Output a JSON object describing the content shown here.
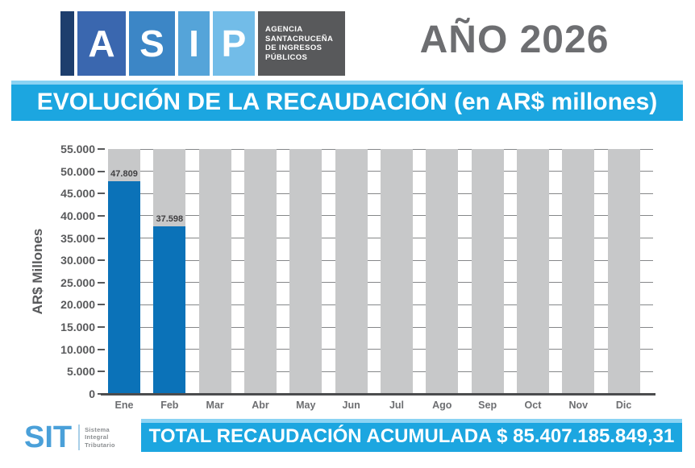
{
  "header": {
    "logo": {
      "letters": [
        "A",
        "S",
        "I",
        "P"
      ],
      "block_colors": [
        "#1d3e6d",
        "#3a67af",
        "#3c86c6",
        "#55a4d9",
        "#72bce8"
      ],
      "block_widths": [
        17,
        60,
        57,
        39,
        52
      ],
      "agency_lines": [
        "AGENCIA",
        "SANTACRUCEÑA",
        "DE INGRESOS",
        "PÚBLICOS"
      ],
      "agency_bg": "#58595b"
    },
    "year_label": "AÑO 2026"
  },
  "title_banner": {
    "text": "EVOLUCIÓN DE LA RECAUDACIÓN (en AR$ millones)",
    "bg": "#1ca6e0",
    "top_strip": "#8bd3f3"
  },
  "chart_data": {
    "type": "bar",
    "title": "EVOLUCIÓN DE LA RECAUDACIÓN (en AR$ millones)",
    "ylabel": "AR$ Millones",
    "xlabel": "",
    "categories": [
      "Ene",
      "Feb",
      "Mar",
      "Abr",
      "May",
      "Jun",
      "Jul",
      "Ago",
      "Sep",
      "Oct",
      "Nov",
      "Dic"
    ],
    "values": [
      47809,
      37598,
      null,
      null,
      null,
      null,
      null,
      null,
      null,
      null,
      null,
      null
    ],
    "value_labels": [
      "47.809",
      "37.598",
      null,
      null,
      null,
      null,
      null,
      null,
      null,
      null,
      null,
      null
    ],
    "ylim": [
      0,
      55000
    ],
    "ytick_step": 5000,
    "ytick_labels": [
      "0",
      "5.000",
      "10.000",
      "15.000",
      "20.000",
      "25.000",
      "30.000",
      "35.000",
      "40.000",
      "45.000",
      "50.000",
      "55.000"
    ],
    "bar_color": "#0b72b8",
    "placeholder_column_color": "#c7c8c9",
    "grid": true,
    "legend": null
  },
  "footer": {
    "sit": {
      "text": "SIT",
      "tagline_lines": [
        "Sistema",
        "Integral",
        "Tributario"
      ]
    },
    "total_banner": {
      "text": "TOTAL RECAUDACIÓN ACUMULADA $ 85.407.185.849,31",
      "bg": "#1ca6e0",
      "top_strip": "#8bd3f3"
    }
  }
}
